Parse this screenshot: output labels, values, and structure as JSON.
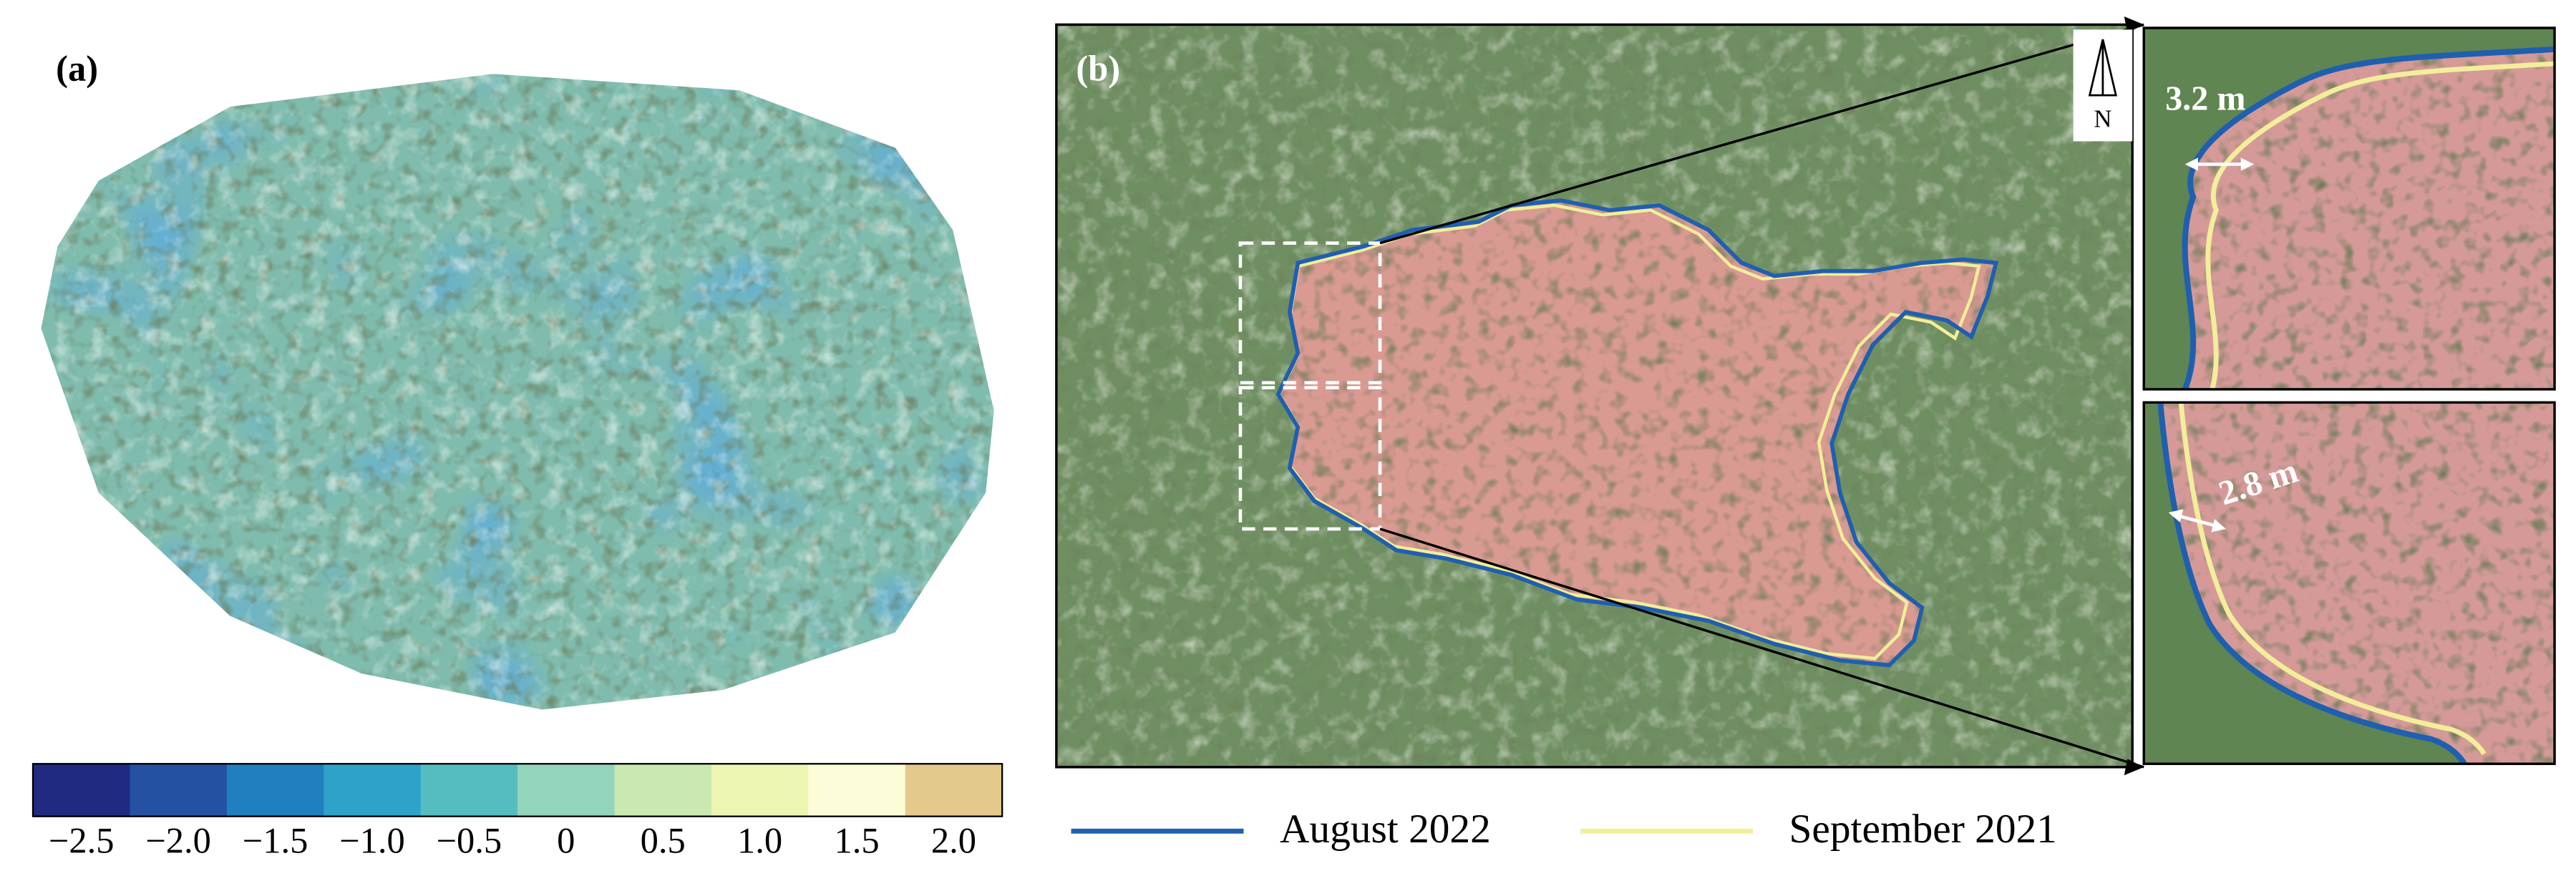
{
  "panel_a": {
    "label": "(a)",
    "colorbar": {
      "colors": [
        "#1f2a80",
        "#2451a2",
        "#1f7fbf",
        "#2ea2c9",
        "#55bdc0",
        "#92d5bc",
        "#c9e9b0",
        "#ecf6b2",
        "#fdfcd9",
        "#e3c98b"
      ],
      "lim": [
        -2.75,
        2.25
      ],
      "ticks": [
        {
          "value": -2.5,
          "label": "−2.5"
        },
        {
          "value": -2.0,
          "label": "−2.0"
        },
        {
          "value": -1.5,
          "label": "−1.5"
        },
        {
          "value": -1.0,
          "label": "−1.0"
        },
        {
          "value": -0.5,
          "label": "−0.5"
        },
        0,
        0.5,
        {
          "value": 1.0,
          "label": "1.0"
        },
        1.5,
        {
          "value": 2.0,
          "label": "2.0"
        }
      ]
    }
  },
  "panel_b": {
    "label": "(b)",
    "north": "N",
    "insets": [
      {
        "annotation": "3.2 m"
      },
      {
        "annotation": "2.8 m"
      }
    ],
    "legend": [
      {
        "name": "August 2022",
        "color": "#1f5fb0"
      },
      {
        "name": "September 2021",
        "color": "#f2ee9a"
      }
    ]
  }
}
